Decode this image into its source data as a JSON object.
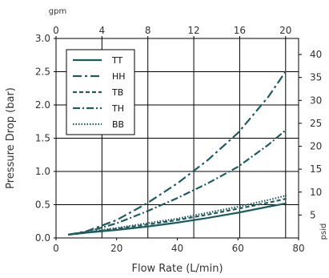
{
  "chart_data": {
    "type": "line",
    "xlabel": "Flow Rate (L/min)",
    "ylabel": "Pressure Drop (bar)",
    "x_secondary_label": "gpm",
    "y_secondary_label": "psid",
    "xlim": [
      0,
      80
    ],
    "ylim": [
      0,
      3.0
    ],
    "x_ticks": [
      "0",
      "20",
      "40",
      "60",
      "80"
    ],
    "y_ticks": [
      "0.0",
      "0.5",
      "1.0",
      "1.5",
      "2.0",
      "2.5",
      "3.0"
    ],
    "x2_range": [
      0,
      21.13
    ],
    "x2_ticks": [
      "0",
      "4",
      "8",
      "12",
      "16",
      "20"
    ],
    "y2_range": [
      0,
      43.5
    ],
    "y2_ticks": [
      "5",
      "10",
      "15",
      "20",
      "25",
      "30",
      "35",
      "40"
    ],
    "grid": true,
    "legend_position": "top-left",
    "line_color": "#1f5c5e",
    "series": [
      {
        "name": "TT",
        "style": "solid",
        "x": [
          4,
          10,
          20,
          30,
          40,
          50,
          60,
          70,
          76
        ],
        "y": [
          0.05,
          0.08,
          0.12,
          0.17,
          0.23,
          0.3,
          0.38,
          0.47,
          0.52
        ]
      },
      {
        "name": "HH",
        "style": "dashdot",
        "x": [
          4,
          10,
          20,
          30,
          40,
          50,
          60,
          70,
          76
        ],
        "y": [
          0.05,
          0.1,
          0.27,
          0.52,
          0.82,
          1.17,
          1.58,
          2.12,
          2.52
        ]
      },
      {
        "name": "TB",
        "style": "dashed",
        "x": [
          4,
          10,
          20,
          30,
          40,
          50,
          60,
          70,
          76
        ],
        "y": [
          0.05,
          0.08,
          0.14,
          0.2,
          0.27,
          0.35,
          0.44,
          0.53,
          0.59
        ]
      },
      {
        "name": "TH",
        "style": "dashdot-long",
        "x": [
          4,
          10,
          20,
          30,
          40,
          50,
          60,
          70,
          76
        ],
        "y": [
          0.05,
          0.09,
          0.22,
          0.4,
          0.6,
          0.82,
          1.07,
          1.4,
          1.63
        ]
      },
      {
        "name": "BB",
        "style": "dotted",
        "x": [
          4,
          10,
          20,
          30,
          40,
          50,
          60,
          70,
          76
        ],
        "y": [
          0.05,
          0.09,
          0.15,
          0.22,
          0.29,
          0.38,
          0.47,
          0.57,
          0.64
        ]
      }
    ]
  }
}
